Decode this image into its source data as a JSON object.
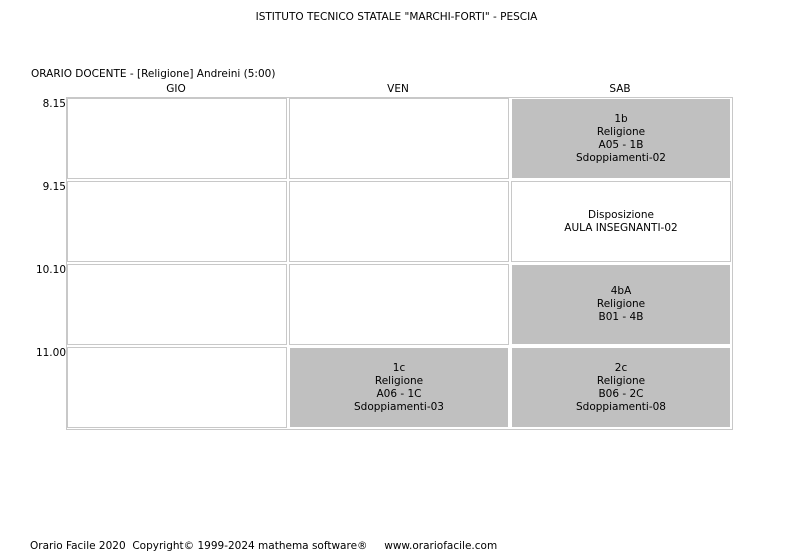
{
  "header": {
    "school_title": "ISTITUTO TECNICO STATALE \"MARCHI-FORTI\" - PESCIA",
    "teacher_line": "ORARIO DOCENTE   -   [Religione] Andreini  (5:00)"
  },
  "days": [
    "GIO",
    "VEN",
    "SAB"
  ],
  "times": [
    "8.15",
    "9.15",
    "10.10",
    "11.00"
  ],
  "rows": [
    {
      "cells": [
        {
          "lines": []
        },
        {
          "lines": []
        },
        {
          "lines": [
            "1b",
            "Religione",
            "A05 - 1B",
            "Sdoppiamenti-02"
          ],
          "filled": true
        }
      ]
    },
    {
      "cells": [
        {
          "lines": []
        },
        {
          "lines": []
        },
        {
          "lines": [
            "Disposizione",
            "AULA INSEGNANTI-02"
          ],
          "filled": false
        }
      ]
    },
    {
      "cells": [
        {
          "lines": []
        },
        {
          "lines": []
        },
        {
          "lines": [
            "4bA",
            "Religione",
            "B01 - 4B"
          ],
          "filled": true
        }
      ]
    },
    {
      "cells": [
        {
          "lines": []
        },
        {
          "lines": [
            "1c",
            "Religione",
            "A06 - 1C",
            "Sdoppiamenti-03"
          ],
          "filled": true
        },
        {
          "lines": [
            "2c",
            "Religione",
            "B06 - 2C",
            "Sdoppiamenti-08"
          ],
          "filled": true
        }
      ]
    }
  ],
  "footer": {
    "app": "Orario Facile 2020",
    "copyright": "Copyright© 1999-2024 mathema software®",
    "url": "www.orariofacile.com"
  },
  "colors": {
    "filled_cell": "#c0c0c0",
    "grid_line": "#c8c8c8"
  }
}
